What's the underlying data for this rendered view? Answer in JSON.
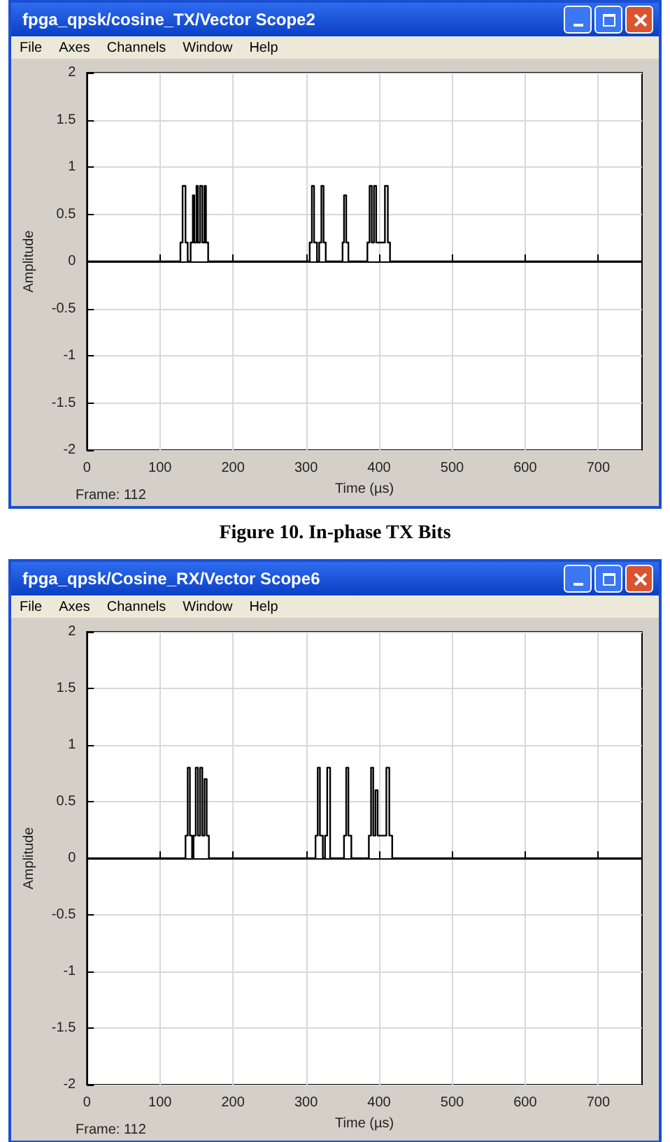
{
  "chart_data": [
    {
      "type": "line",
      "title": "fpga_qpsk/cosine_TX/Vector Scope2",
      "xlabel": "Time (µs)",
      "ylabel": "Amplitude",
      "xlim": [
        0,
        760
      ],
      "ylim": [
        -2,
        2
      ],
      "xticks": [
        0,
        100,
        200,
        300,
        400,
        500,
        600,
        700
      ],
      "yticks": [
        -2,
        -1.5,
        -1,
        -0.5,
        0,
        0.5,
        1,
        1.5,
        2
      ],
      "grid": true,
      "annotations": [
        "File",
        "Axes",
        "Channels",
        "Window",
        "Help",
        "Frame: 112",
        "Figure 10.  In-phase TX Bits"
      ],
      "series": [
        {
          "color": "#000000",
          "x": [
            0,
            128,
            128,
            131,
            131,
            135,
            135,
            138,
            138,
            142,
            142,
            145,
            145,
            147,
            147,
            150,
            150,
            152,
            152,
            155,
            155,
            158,
            158,
            161,
            161,
            163,
            163,
            166,
            166,
            305,
            305,
            308,
            308,
            311,
            311,
            315,
            315,
            318,
            318,
            321,
            321,
            324,
            324,
            327,
            327,
            350,
            350,
            352,
            352,
            355,
            355,
            358,
            358,
            384,
            384,
            387,
            387,
            390,
            390,
            393,
            393,
            396,
            396,
            408,
            408,
            412,
            412,
            415,
            415,
            760
          ],
          "values": [
            0,
            0,
            0.2,
            0.2,
            0.8,
            0.8,
            0.2,
            0.2,
            0,
            0,
            0.2,
            0.2,
            0.7,
            0.7,
            0.2,
            0.2,
            0.8,
            0.8,
            0.2,
            0.2,
            0.8,
            0.8,
            0.2,
            0.2,
            0.8,
            0.8,
            0.2,
            0.2,
            0,
            0,
            0.2,
            0.2,
            0.8,
            0.8,
            0.2,
            0.2,
            0,
            0,
            0.2,
            0.2,
            0.8,
            0.8,
            0.2,
            0.2,
            0,
            0,
            0.2,
            0.2,
            0.7,
            0.7,
            0.2,
            0.2,
            0,
            0,
            0.2,
            0.2,
            0.8,
            0.8,
            0.2,
            0.2,
            0.8,
            0.8,
            0.2,
            0.2,
            0.8,
            0.8,
            0.2,
            0.2,
            0,
            0
          ]
        }
      ]
    },
    {
      "type": "line",
      "title": "fpga_qpsk/Cosine_RX/Vector Scope6",
      "xlabel": "Time (µs)",
      "ylabel": "Amplitude",
      "xlim": [
        0,
        760
      ],
      "ylim": [
        -2,
        2
      ],
      "xticks": [
        0,
        100,
        200,
        300,
        400,
        500,
        600,
        700
      ],
      "yticks": [
        -2,
        -1.5,
        -1,
        -0.5,
        0,
        0.5,
        1,
        1.5,
        2
      ],
      "grid": true,
      "annotations": [
        "File",
        "Axes",
        "Channels",
        "Window",
        "Help",
        "Frame: 112"
      ],
      "series": [
        {
          "color": "#000000",
          "x": [
            0,
            135,
            135,
            138,
            138,
            141,
            141,
            144,
            144,
            146,
            146,
            149,
            149,
            152,
            152,
            155,
            155,
            158,
            158,
            161,
            161,
            164,
            164,
            167,
            167,
            313,
            313,
            316,
            316,
            319,
            319,
            323,
            323,
            326,
            326,
            329,
            329,
            333,
            333,
            352,
            352,
            355,
            355,
            358,
            358,
            362,
            362,
            386,
            386,
            389,
            389,
            392,
            392,
            395,
            395,
            398,
            398,
            406,
            406,
            410,
            410,
            414,
            414,
            418,
            418,
            760
          ],
          "values": [
            0,
            0,
            0.2,
            0.2,
            0.8,
            0.8,
            0.2,
            0.2,
            0,
            0,
            0.2,
            0.2,
            0.8,
            0.8,
            0.2,
            0.2,
            0.8,
            0.8,
            0.2,
            0.2,
            0.7,
            0.7,
            0.2,
            0.2,
            0,
            0,
            0.2,
            0.2,
            0.8,
            0.8,
            0.2,
            0.2,
            0,
            0,
            0.2,
            0.2,
            0.8,
            0.8,
            0,
            0,
            0.2,
            0.2,
            0.8,
            0.8,
            0.2,
            0.2,
            0,
            0,
            0.2,
            0.2,
            0.8,
            0.8,
            0.2,
            0.2,
            0.6,
            0.6,
            0.2,
            0.2,
            0.2,
            0.2,
            0.8,
            0.8,
            0.2,
            0.2,
            0,
            0
          ]
        }
      ]
    }
  ]
}
